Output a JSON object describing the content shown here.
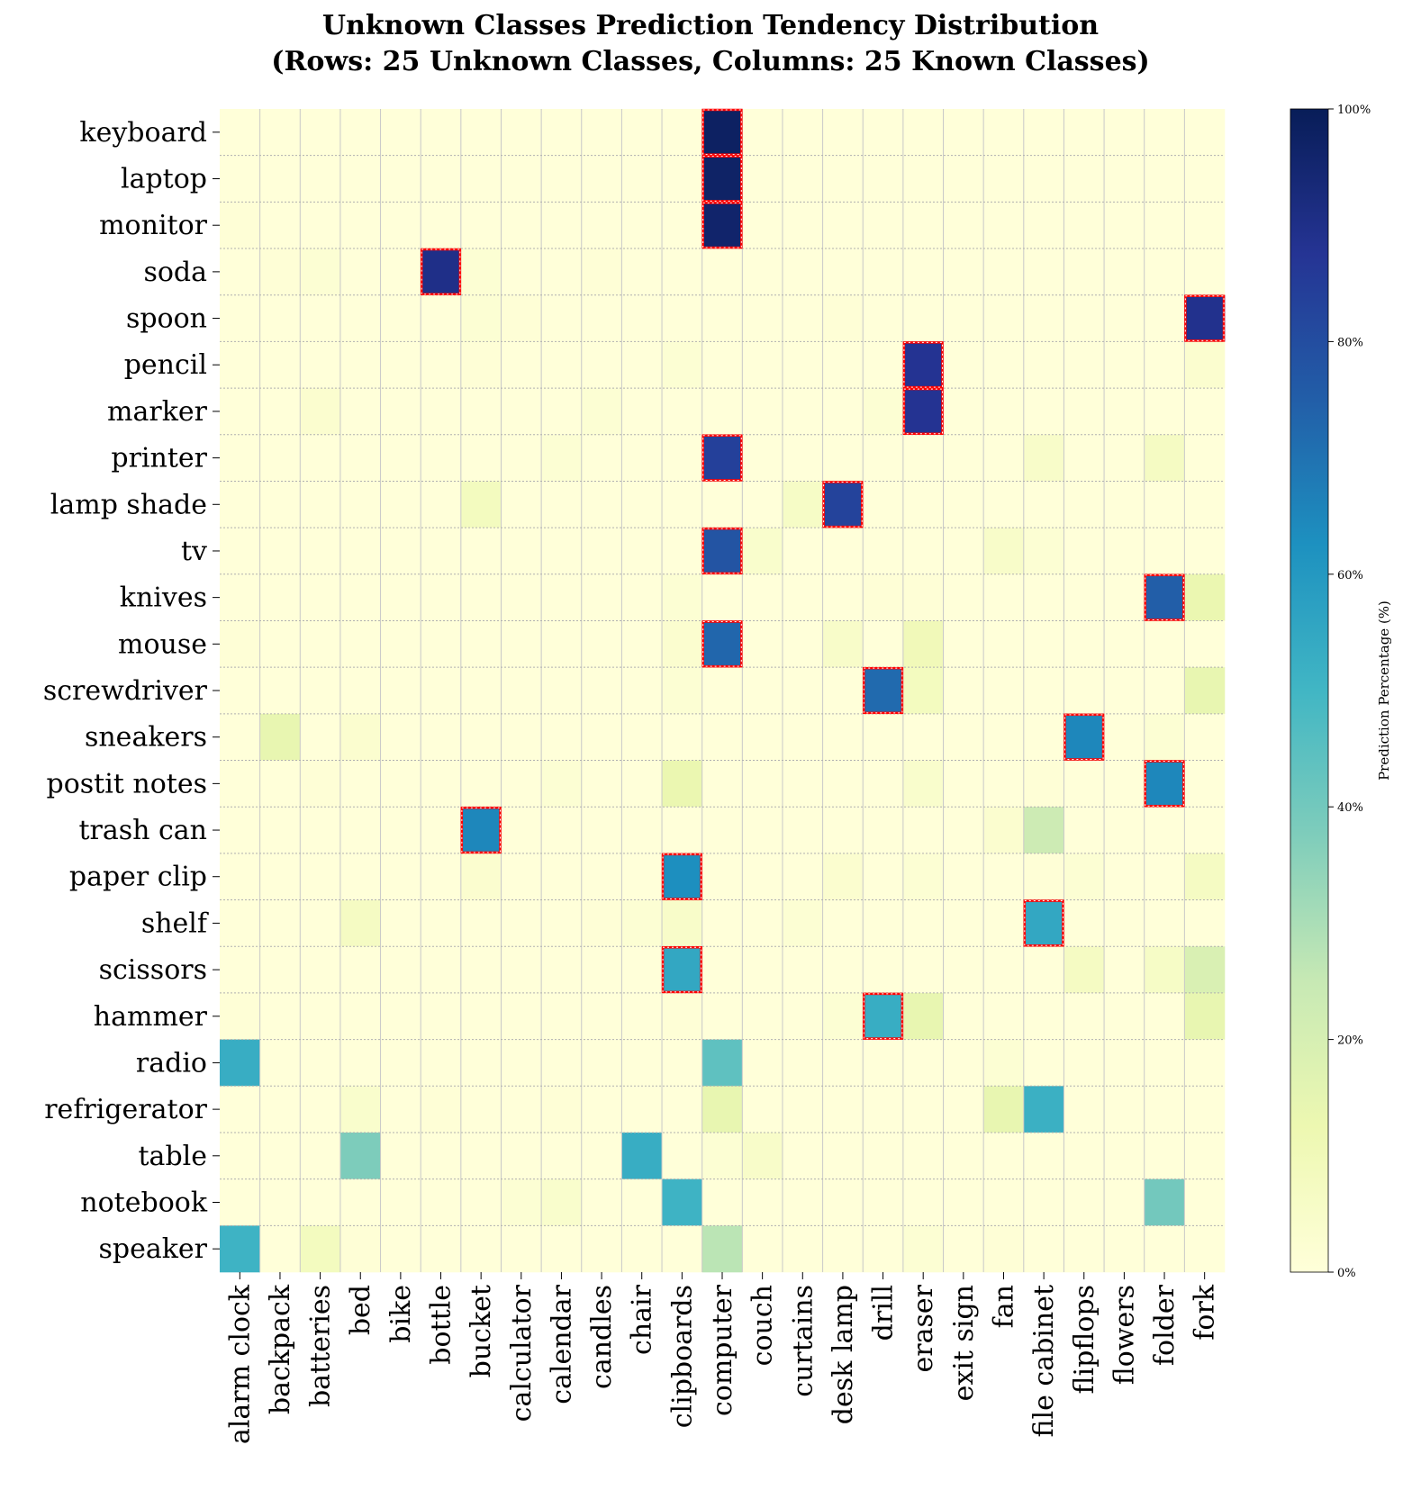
{
  "chart_data": {
    "type": "heatmap",
    "title_line1": "Unknown Classes Prediction Tendency Distribution",
    "title_line2": "(Rows: 25 Unknown Classes, Columns: 25 Known Classes)",
    "rows": [
      "keyboard",
      "laptop",
      "monitor",
      "soda",
      "spoon",
      "pencil",
      "marker",
      "printer",
      "lamp shade",
      "tv",
      "knives",
      "mouse",
      "screwdriver",
      "sneakers",
      "postit notes",
      "trash can",
      "paper clip",
      "shelf",
      "scissors",
      "hammer",
      "radio",
      "refrigerator",
      "table",
      "notebook",
      "speaker"
    ],
    "columns": [
      "alarm clock",
      "backpack",
      "batteries",
      "bed",
      "bike",
      "bottle",
      "bucket",
      "calculator",
      "calendar",
      "candles",
      "chair",
      "clipboards",
      "computer",
      "couch",
      "curtains",
      "desk lamp",
      "drill",
      "eraser",
      "exit sign",
      "fan",
      "file cabinet",
      "flipflops",
      "flowers",
      "folder",
      "fork"
    ],
    "values": [
      [
        0,
        0,
        0,
        0,
        0,
        0,
        0,
        0,
        0,
        0,
        0,
        0,
        98,
        0,
        0,
        0,
        0,
        0,
        0,
        0,
        0,
        0,
        0,
        0,
        0
      ],
      [
        0,
        0,
        0,
        0,
        0,
        0,
        0,
        0,
        0,
        0,
        0,
        0,
        97,
        0,
        0,
        0,
        0,
        0,
        0,
        0,
        0,
        0,
        0,
        0,
        0
      ],
      [
        1,
        0,
        0,
        0,
        0,
        0,
        0,
        0,
        0,
        0,
        0,
        0,
        96,
        0,
        0,
        0,
        0,
        0,
        0,
        0,
        0,
        0,
        0,
        0,
        0
      ],
      [
        0,
        1,
        2,
        0,
        0,
        90,
        2,
        0,
        0,
        1,
        0,
        0,
        0,
        0,
        0,
        0,
        0,
        0,
        0,
        0,
        0,
        0,
        0,
        0,
        0
      ],
      [
        0,
        0,
        0,
        0,
        0,
        0,
        2,
        1,
        0,
        0,
        0,
        0,
        0,
        0,
        0,
        1,
        0,
        0,
        0,
        0,
        0,
        0,
        0,
        0,
        89
      ],
      [
        0,
        0,
        0,
        0,
        0,
        0,
        1,
        0,
        0,
        0,
        0,
        2,
        0,
        0,
        0,
        0,
        0,
        88,
        0,
        0,
        0,
        0,
        0,
        0,
        3
      ],
      [
        0,
        0,
        3,
        0,
        0,
        0,
        0,
        0,
        0,
        2,
        0,
        0,
        0,
        0,
        0,
        0,
        2,
        88,
        0,
        0,
        0,
        0,
        0,
        0,
        0
      ],
      [
        0,
        0,
        0,
        0,
        0,
        0,
        0,
        0,
        2,
        0,
        0,
        0,
        84,
        0,
        0,
        0,
        0,
        0,
        0,
        0,
        5,
        0,
        0,
        7,
        0
      ],
      [
        0,
        0,
        0,
        0,
        0,
        0,
        8,
        0,
        0,
        0,
        0,
        0,
        0,
        0,
        6,
        83,
        0,
        0,
        0,
        0,
        0,
        0,
        0,
        0,
        0
      ],
      [
        0,
        0,
        0,
        0,
        0,
        0,
        0,
        0,
        0,
        0,
        0,
        0,
        78,
        4,
        0,
        0,
        0,
        0,
        0,
        5,
        2,
        0,
        0,
        0,
        0
      ],
      [
        0,
        0,
        0,
        0,
        0,
        0,
        0,
        0,
        0,
        0,
        0,
        2,
        0,
        0,
        0,
        0,
        1,
        1,
        0,
        0,
        0,
        0,
        0,
        75,
        13
      ],
      [
        1,
        0,
        0,
        0,
        0,
        0,
        0,
        0,
        0,
        0,
        0,
        3,
        73,
        0,
        0,
        5,
        0,
        10,
        0,
        0,
        0,
        0,
        0,
        0,
        0
      ],
      [
        0,
        0,
        0,
        0,
        0,
        0,
        0,
        0,
        0,
        0,
        0,
        2,
        0,
        0,
        0,
        0,
        72,
        8,
        0,
        0,
        0,
        0,
        0,
        0,
        14
      ],
      [
        0,
        14,
        0,
        3,
        0,
        0,
        0,
        0,
        0,
        0,
        0,
        0,
        0,
        0,
        0,
        0,
        0,
        0,
        0,
        0,
        0,
        65,
        0,
        2,
        0
      ],
      [
        0,
        0,
        1,
        0,
        0,
        0,
        0,
        0,
        2,
        0,
        0,
        13,
        0,
        0,
        0,
        0,
        0,
        4,
        0,
        0,
        1,
        0,
        0,
        65,
        0
      ],
      [
        0,
        0,
        0,
        0,
        0,
        0,
        65,
        0,
        0,
        0,
        0,
        0,
        0,
        0,
        0,
        0,
        0,
        0,
        0,
        3,
        23,
        0,
        0,
        0,
        0
      ],
      [
        0,
        0,
        0,
        0,
        0,
        0,
        3,
        0,
        0,
        0,
        0,
        63,
        0,
        0,
        0,
        3,
        0,
        2,
        0,
        0,
        1,
        2,
        0,
        0,
        7
      ],
      [
        0,
        0,
        0,
        7,
        0,
        0,
        0,
        0,
        0,
        1,
        2,
        5,
        0,
        0,
        2,
        0,
        0,
        0,
        0,
        0,
        55,
        0,
        0,
        0,
        0
      ],
      [
        0,
        0,
        0,
        0,
        0,
        0,
        0,
        0,
        0,
        0,
        0,
        55,
        0,
        0,
        0,
        0,
        0,
        0,
        0,
        0,
        0,
        7,
        0,
        6,
        19
      ],
      [
        1,
        0,
        0,
        0,
        0,
        0,
        0,
        0,
        0,
        0,
        0,
        1,
        0,
        0,
        0,
        2,
        53,
        14,
        0,
        0,
        0,
        0,
        0,
        0,
        14
      ],
      [
        53,
        0,
        0,
        0,
        0,
        0,
        0,
        0,
        0,
        0,
        0,
        0,
        44,
        0,
        0,
        0,
        0,
        0,
        0,
        2,
        0,
        0,
        0,
        0,
        0
      ],
      [
        0,
        0,
        0,
        4,
        0,
        1,
        0,
        0,
        1,
        0,
        0,
        0,
        14,
        0,
        0,
        0,
        0,
        0,
        0,
        14,
        52,
        0,
        0,
        0,
        0
      ],
      [
        0,
        0,
        0,
        38,
        0,
        0,
        0,
        0,
        0,
        0,
        53,
        0,
        2,
        5,
        0,
        0,
        0,
        0,
        0,
        0,
        0,
        0,
        0,
        0,
        0
      ],
      [
        0,
        0,
        0,
        0,
        0,
        0,
        0,
        2,
        4,
        0,
        0,
        51,
        0,
        0,
        0,
        0,
        0,
        0,
        0,
        0,
        0,
        0,
        0,
        40,
        0
      ],
      [
        51,
        0,
        8,
        1,
        0,
        0,
        0,
        0,
        0,
        0,
        0,
        0,
        27,
        0,
        0,
        0,
        0,
        2,
        0,
        1,
        0,
        0,
        0,
        0,
        0
      ]
    ],
    "highlighted": [
      [
        0,
        12
      ],
      [
        1,
        12
      ],
      [
        2,
        12
      ],
      [
        3,
        5
      ],
      [
        4,
        24
      ],
      [
        5,
        17
      ],
      [
        6,
        17
      ],
      [
        7,
        12
      ],
      [
        8,
        15
      ],
      [
        9,
        12
      ],
      [
        10,
        23
      ],
      [
        11,
        12
      ],
      [
        12,
        16
      ],
      [
        13,
        21
      ],
      [
        14,
        23
      ],
      [
        15,
        6
      ],
      [
        16,
        11
      ],
      [
        17,
        20
      ],
      [
        18,
        11
      ],
      [
        19,
        16
      ]
    ],
    "colorbar": {
      "label": "Prediction Percentage (%)",
      "ticks": [
        "0%",
        "20%",
        "40%",
        "60%",
        "80%",
        "100%"
      ],
      "range": [
        0,
        100
      ],
      "colormap": "YlGnBu"
    }
  },
  "colors": {
    "highlight_border": "#ff0000",
    "grid_line": "#b0b0b0",
    "cell_separator": "#c8c8c8"
  }
}
